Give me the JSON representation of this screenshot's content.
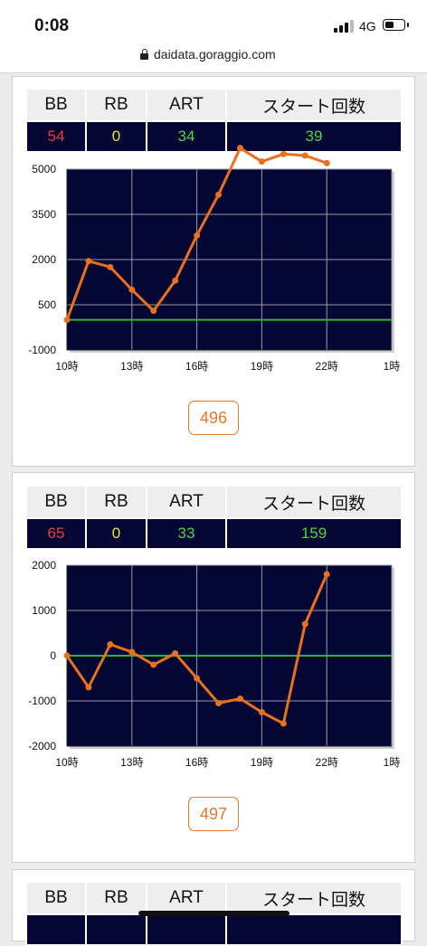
{
  "status_bar": {
    "time": "0:08",
    "network": "4G",
    "battery_level": 0.45
  },
  "browser": {
    "url": "daidata.goraggio.com"
  },
  "headers": {
    "bb": "BB",
    "rb": "RB",
    "art": "ART",
    "start": "スタート回数"
  },
  "colors": {
    "bb": "#ef3b3b",
    "rb": "#e6e63c",
    "art": "#47d647",
    "start": "#47d647",
    "line": "#e8701f",
    "zero": "#2fb52f",
    "plot_bg": "#040733",
    "grid": "#9a9aa8"
  },
  "panels": [
    {
      "stats": {
        "bb": "54",
        "rb": "0",
        "art": "34",
        "start": "39"
      },
      "total": "496",
      "chart_data": {
        "type": "line",
        "y_ticks": [
          5000,
          3500,
          2000,
          500,
          -1000
        ],
        "ylim": [
          -1000,
          5000
        ],
        "x_ticks": [
          "10時",
          "13時",
          "16時",
          "19時",
          "22時",
          "1時"
        ],
        "x_tick_hours": [
          10,
          13,
          16,
          19,
          22,
          25
        ],
        "xlim": [
          10,
          25
        ],
        "baseline": 0,
        "series": [
          {
            "x": [
              10,
              11,
              12,
              13,
              14,
              15,
              16,
              17,
              18,
              19,
              20,
              21,
              22
            ],
            "y": [
              0,
              1950,
              1750,
              1000,
              300,
              1300,
              2800,
              4150,
              5700,
              5250,
              5500,
              5450,
              5200
            ]
          }
        ]
      }
    },
    {
      "stats": {
        "bb": "65",
        "rb": "0",
        "art": "33",
        "start": "159"
      },
      "total": "497",
      "chart_data": {
        "type": "line",
        "y_ticks": [
          2000,
          1000,
          0,
          -1000,
          -2000
        ],
        "ylim": [
          -2000,
          2000
        ],
        "x_ticks": [
          "10時",
          "13時",
          "16時",
          "19時",
          "22時",
          "1時"
        ],
        "x_tick_hours": [
          10,
          13,
          16,
          19,
          22,
          25
        ],
        "xlim": [
          10,
          25
        ],
        "baseline": 0,
        "series": [
          {
            "x": [
              10,
              11,
              12,
              13,
              14,
              15,
              16,
              17,
              18,
              19,
              20,
              21,
              22
            ],
            "y": [
              0,
              -700,
              250,
              80,
              -200,
              50,
              -500,
              -1050,
              -950,
              -1250,
              -1500,
              700,
              1800
            ]
          }
        ]
      }
    },
    {
      "stats": {
        "bb": "",
        "rb": "",
        "art": "",
        "start": ""
      }
    }
  ]
}
